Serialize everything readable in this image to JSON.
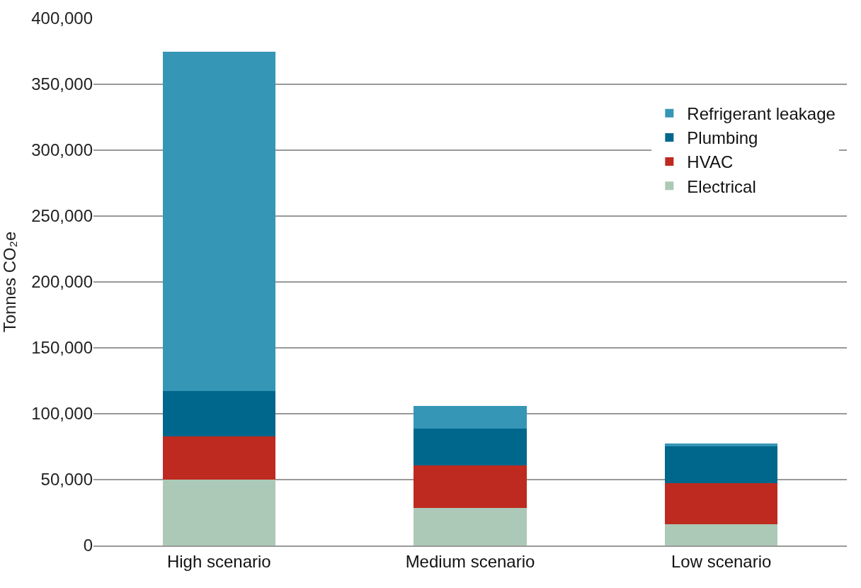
{
  "chart_data": {
    "type": "bar",
    "stacked": true,
    "ylabel": "Tonnes CO₂e",
    "categories": [
      "High scenario",
      "Medium scenario",
      "Low scenario"
    ],
    "series": [
      {
        "name": "Electrical",
        "color": "#acc9b7",
        "values": [
          50000,
          28500,
          16000
        ]
      },
      {
        "name": "HVAC",
        "color": "#be2a1f",
        "values": [
          33000,
          32000,
          31500
        ]
      },
      {
        "name": "Plumbing",
        "color": "#00678c",
        "values": [
          34000,
          28000,
          28000
        ]
      },
      {
        "name": "Refrigerant leakage",
        "color": "#3596b6",
        "values": [
          258000,
          17500,
          2000
        ]
      }
    ],
    "ylim": [
      0,
      400000
    ],
    "yticks": [
      {
        "value": 0,
        "label": "0"
      },
      {
        "value": 50000,
        "label": "50,000"
      },
      {
        "value": 100000,
        "label": "100,000"
      },
      {
        "value": 150000,
        "label": "150,000"
      },
      {
        "value": 200000,
        "label": "200,000"
      },
      {
        "value": 250000,
        "label": "250,000"
      },
      {
        "value": 300000,
        "label": "300,000"
      },
      {
        "value": 350000,
        "label": "350,000"
      },
      {
        "value": 400000,
        "label": "400,000"
      }
    ],
    "grid": "y",
    "legend": "top right"
  }
}
